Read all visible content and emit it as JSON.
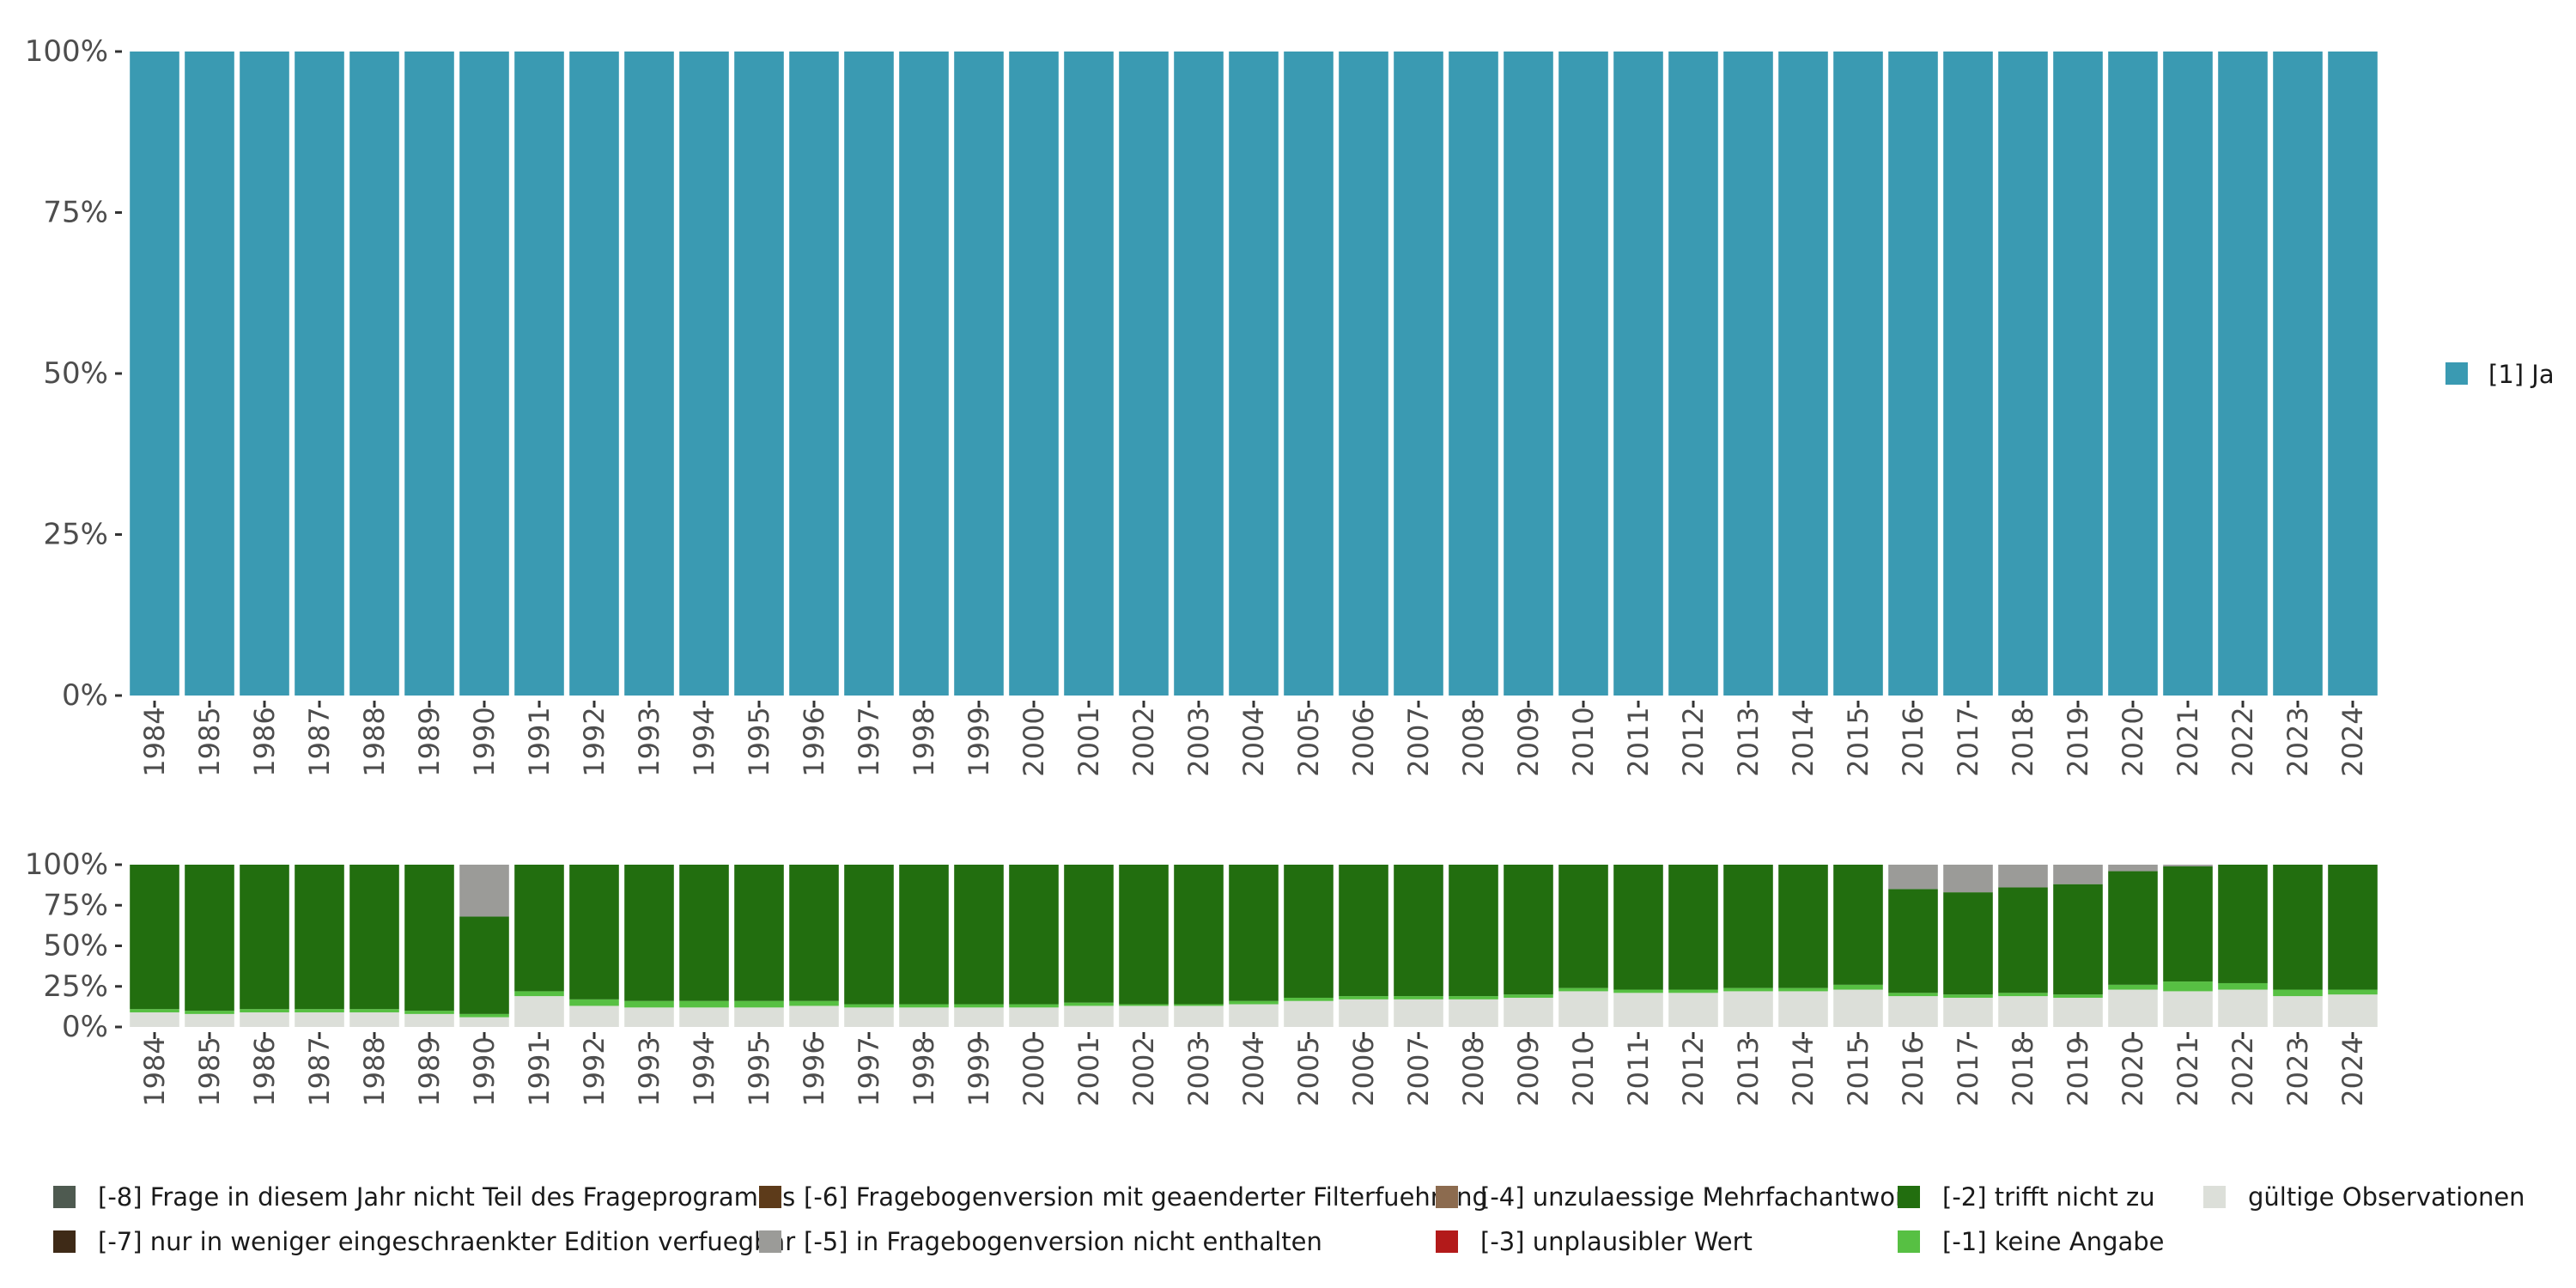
{
  "chart_data": [
    {
      "type": "bar",
      "stacked": true,
      "title": "",
      "xlabel": "",
      "ylabel": "",
      "ylim": [
        0,
        100
      ],
      "y_ticks": [
        "0%",
        "25%",
        "50%",
        "75%",
        "100%"
      ],
      "categories": [
        "1984",
        "1985",
        "1986",
        "1987",
        "1988",
        "1989",
        "1990",
        "1991",
        "1992",
        "1993",
        "1994",
        "1995",
        "1996",
        "1997",
        "1998",
        "1999",
        "2000",
        "2001",
        "2002",
        "2003",
        "2004",
        "2005",
        "2006",
        "2007",
        "2008",
        "2009",
        "2010",
        "2011",
        "2012",
        "2013",
        "2014",
        "2015",
        "2016",
        "2017",
        "2018",
        "2019",
        "2020",
        "2021",
        "2022",
        "2023",
        "2024"
      ],
      "series": [
        {
          "name": "[1] Ja",
          "color": "#3a9ab2",
          "values": [
            100,
            100,
            100,
            100,
            100,
            100,
            100,
            100,
            100,
            100,
            100,
            100,
            100,
            100,
            100,
            100,
            100,
            100,
            100,
            100,
            100,
            100,
            100,
            100,
            100,
            100,
            100,
            100,
            100,
            100,
            100,
            100,
            100,
            100,
            100,
            100,
            100,
            100,
            100,
            100,
            100
          ]
        }
      ],
      "legend": {
        "position": "right",
        "entries": [
          {
            "label": "[1] Ja",
            "color": "#3a9ab2"
          }
        ]
      }
    },
    {
      "type": "bar",
      "stacked": true,
      "title": "",
      "xlabel": "",
      "ylabel": "",
      "ylim": [
        0,
        100
      ],
      "y_ticks": [
        "0%",
        "25%",
        "50%",
        "75%",
        "100%"
      ],
      "categories": [
        "1984",
        "1985",
        "1986",
        "1987",
        "1988",
        "1989",
        "1990",
        "1991",
        "1992",
        "1993",
        "1994",
        "1995",
        "1996",
        "1997",
        "1998",
        "1999",
        "2000",
        "2001",
        "2002",
        "2003",
        "2004",
        "2005",
        "2006",
        "2007",
        "2008",
        "2009",
        "2010",
        "2011",
        "2012",
        "2013",
        "2014",
        "2015",
        "2016",
        "2017",
        "2018",
        "2019",
        "2020",
        "2021",
        "2022",
        "2023",
        "2024"
      ],
      "series": [
        {
          "name": "gültige Observationen",
          "color": "#dcdfd9",
          "values": [
            9,
            8,
            9,
            9,
            9,
            8,
            6,
            19,
            13,
            12,
            12,
            12,
            13,
            12,
            12,
            12,
            12,
            13,
            13,
            13,
            14,
            16,
            17,
            17,
            17,
            18,
            22,
            21,
            21,
            22,
            22,
            23,
            19,
            18,
            19,
            18,
            23,
            22,
            23,
            19,
            20
          ]
        },
        {
          "name": "[-1] keine Angabe",
          "color": "#57c043",
          "values": [
            2,
            2,
            2,
            2,
            2,
            2,
            2,
            3,
            4,
            4,
            4,
            4,
            3,
            2,
            2,
            2,
            2,
            2,
            1,
            1,
            2,
            2,
            2,
            2,
            2,
            2,
            2,
            2,
            2,
            2,
            2,
            3,
            2,
            2,
            2,
            2,
            3,
            6,
            4,
            4,
            3
          ]
        },
        {
          "name": "[-2] trifft nicht zu",
          "color": "#226e0f",
          "values": [
            89,
            90,
            89,
            89,
            89,
            90,
            60,
            78,
            83,
            84,
            84,
            84,
            84,
            86,
            86,
            86,
            86,
            85,
            86,
            86,
            84,
            82,
            81,
            81,
            81,
            80,
            76,
            77,
            77,
            76,
            76,
            74,
            64,
            63,
            65,
            68,
            70,
            71,
            73,
            77,
            77
          ]
        },
        {
          "name": "[-5] in Fragebogenversion nicht enthalten",
          "color": "#9b9b98",
          "values": [
            0,
            0,
            0,
            0,
            0,
            0,
            32,
            0,
            0,
            0,
            0,
            0,
            0,
            0,
            0,
            0,
            0,
            0,
            0,
            0,
            0,
            0,
            0,
            0,
            0,
            0,
            0,
            0,
            0,
            0,
            0,
            0,
            15,
            17,
            14,
            12,
            4,
            1,
            0,
            0,
            0
          ]
        }
      ],
      "legend": {
        "position": "bottom",
        "entries": [
          {
            "label": "[-8] Frage in diesem Jahr nicht Teil des Frageprogramms",
            "color": "#4e5a50"
          },
          {
            "label": "[-7] nur in weniger eingeschraenkter Edition verfuegbar",
            "color": "#3e2a17"
          },
          {
            "label": "[-6] Fragebogenversion mit geaenderter Filterfuehrung",
            "color": "#5d3b1a"
          },
          {
            "label": "[-5] in Fragebogenversion nicht enthalten",
            "color": "#9b9b98"
          },
          {
            "label": "[-4] unzulaessige Mehrfachantwort",
            "color": "#8c6b4f"
          },
          {
            "label": "[-3] unplausibler Wert",
            "color": "#b31a1a"
          },
          {
            "label": "[-2] trifft nicht zu",
            "color": "#226e0f"
          },
          {
            "label": "[-1] keine Angabe",
            "color": "#57c043"
          },
          {
            "label": "gültige Observationen",
            "color": "#dcdfd9"
          }
        ]
      }
    }
  ]
}
